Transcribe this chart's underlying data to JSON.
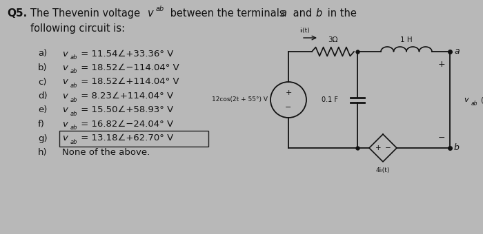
{
  "bg_color": "#b8b8b8",
  "text_color": "#111111",
  "title_q": "Q5.",
  "options": [
    [
      "a)",
      "v",
      "ab",
      " = 11.54∠+33.36° V"
    ],
    [
      "b)",
      "v",
      "ab",
      " = 18.52∠−114.04° V"
    ],
    [
      "c)",
      "v",
      "ab",
      " = 18.52∠+114.04° V"
    ],
    [
      "d)",
      "v",
      "ab",
      " = 8.23∠+114.04° V"
    ],
    [
      "e)",
      "v",
      "ab",
      " = 15.50∠+58.93° V"
    ],
    [
      "f)",
      "v",
      "ab",
      " = 16.82∠−24.04° V"
    ],
    [
      "g)",
      "v",
      "ab",
      " = 13.18∠+62.70° V"
    ],
    [
      "h)",
      "",
      "",
      "None of the above."
    ]
  ],
  "highlight_option": 6,
  "src_label": "12cos(2t + 55°) V",
  "res_label": "3Ω",
  "ind_label": "1 H",
  "cap_label": "0.1 F",
  "dep_label": "4iₗ(t)",
  "il_label": "iₗ(t)",
  "vab_label": "v",
  "vab_sub": "ab",
  "vab_end": "(t)",
  "term_a": "a",
  "term_b": "b"
}
